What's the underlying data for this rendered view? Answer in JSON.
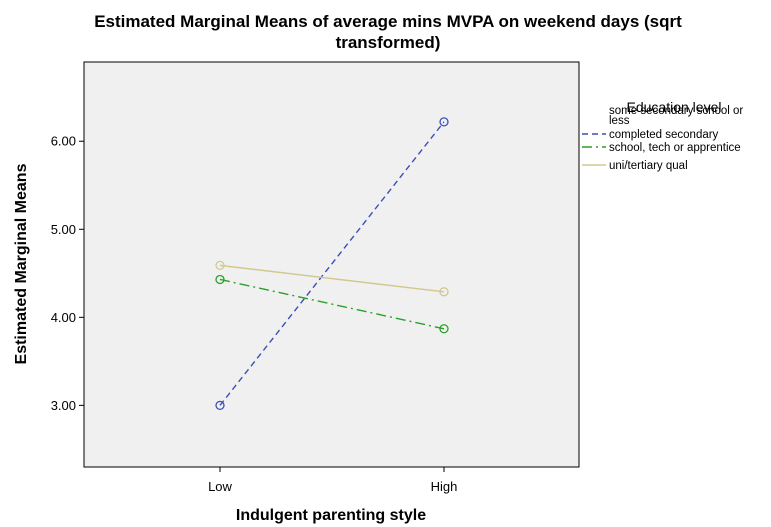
{
  "chart_data": {
    "type": "line",
    "title": "Estimated Marginal Means of average mins MVPA on weekend days (sqrt transformed)",
    "title_lines": [
      "Estimated Marginal Means of average mins MVPA on weekend days (sqrt",
      "transformed)"
    ],
    "xlabel": "Indulgent parenting style",
    "ylabel": "Estimated Marginal Means",
    "categories": [
      "Low",
      "High"
    ],
    "ylim": [
      2.3,
      6.9
    ],
    "yticks": [
      3.0,
      4.0,
      5.0,
      6.0
    ],
    "ytick_labels": [
      "3.00",
      "4.00",
      "5.00",
      "6.00"
    ],
    "grid": false,
    "legend": {
      "title": "Education level",
      "placement": "right"
    },
    "series": [
      {
        "name": "some secondary school or less",
        "label_lines": [
          "some secondary school or",
          "less"
        ],
        "values": [
          3.0,
          6.22
        ],
        "color": "#3b4fb8",
        "dash": "6,4",
        "marker": "circle"
      },
      {
        "name": "completed secondary school, tech or apprentice",
        "label_lines": [
          "completed secondary",
          "school, tech or apprentice"
        ],
        "values": [
          4.43,
          3.87
        ],
        "color": "#2aa12a",
        "dash": "10,4,2,4",
        "marker": "circle"
      },
      {
        "name": "uni/tertiary qual",
        "label_lines": [
          "uni/tertiary qual"
        ],
        "values": [
          4.59,
          4.29
        ],
        "color": "#d2c88e",
        "dash": "",
        "marker": "circle"
      }
    ]
  }
}
